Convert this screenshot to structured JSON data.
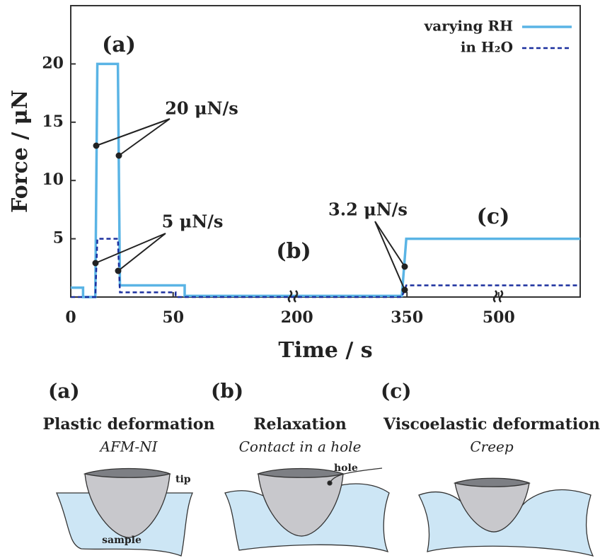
{
  "chart_data": {
    "type": "line",
    "xlabel": "Time / s",
    "ylabel": "Force / μN",
    "xlim": [
      0,
      630
    ],
    "xticks": [
      0,
      50,
      200,
      350,
      500
    ],
    "ylim": [
      0,
      25
    ],
    "yticks": [
      5,
      10,
      15,
      20
    ],
    "legend": "upper right",
    "annotations": [
      "(a)",
      "(b)",
      "(c)",
      "20 μN/s",
      "5 μN/s",
      "3.2 μN/s"
    ],
    "series": [
      {
        "name": "varying RH",
        "color": "#5ab4e5",
        "dash": false,
        "x": [
          0,
          6,
          6,
          12,
          13,
          23,
          24,
          64,
          64,
          343,
          349,
          630
        ],
        "values": [
          0.8,
          0.8,
          0,
          0,
          20,
          20,
          1,
          1,
          0.1,
          0.1,
          5,
          5
        ]
      },
      {
        "name": "in H₂O",
        "color": "#1a2f9e",
        "dash": true,
        "x": [
          0,
          12,
          13,
          23,
          24,
          53,
          53,
          343,
          349,
          630
        ],
        "values": [
          0,
          0,
          5,
          5,
          0.4,
          0.4,
          0,
          0,
          1,
          1
        ]
      }
    ]
  },
  "panels": [
    {
      "label": "(a)",
      "title": "Plastic deformation",
      "subtitle": "AFM-NI",
      "tip": "tip",
      "sample": "sample"
    },
    {
      "label": "(b)",
      "title": "Relaxation",
      "subtitle": "Contact in a hole",
      "hole": "hole"
    },
    {
      "label": "(c)",
      "title": "Viscoelastic deformation",
      "subtitle": "Creep"
    }
  ]
}
